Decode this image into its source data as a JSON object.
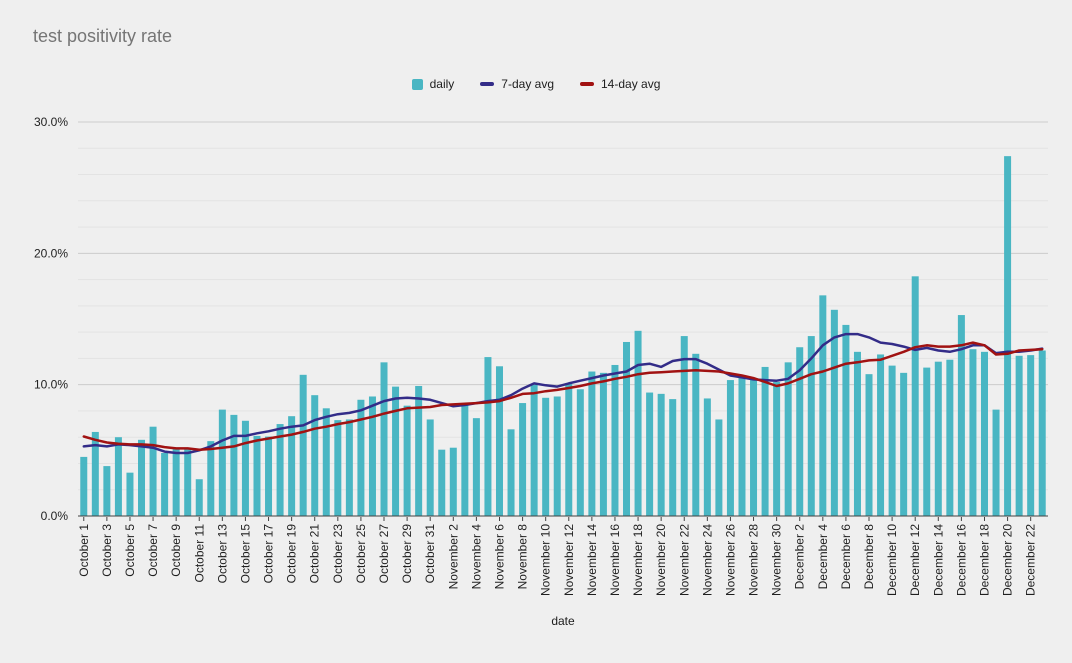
{
  "title": "test positivity rate",
  "xaxis_title": "date",
  "colors": {
    "background": "#efefef",
    "bar": "#49b6c3",
    "avg7": "#332c88",
    "avg14": "#a11212",
    "grid_major": "#cccccc",
    "grid_minor": "#e3e3e3",
    "axis": "#424242",
    "tick_text": "#1f1f1f",
    "title_text": "#757575"
  },
  "legend": [
    {
      "label": "daily",
      "swatch": "square",
      "color": "#49b6c3"
    },
    {
      "label": "7-day avg",
      "swatch": "line",
      "color": "#332c88"
    },
    {
      "label": "14-day avg",
      "swatch": "line",
      "color": "#a11212"
    }
  ],
  "chart_data": {
    "type": "bar",
    "title": "test positivity rate",
    "xlabel": "date",
    "ylabel": "",
    "ylim": [
      0,
      30
    ],
    "y_ticks": [
      {
        "value": 0,
        "label": "0.0%"
      },
      {
        "value": 10,
        "label": "10.0%"
      },
      {
        "value": 20,
        "label": "20.0%"
      },
      {
        "value": 30,
        "label": "30.0%"
      }
    ],
    "minor_grid_step": 2,
    "grid": true,
    "legend_position": "top-center",
    "x_label_every": 2,
    "categories": [
      "October 1",
      "October 2",
      "October 3",
      "October 4",
      "October 5",
      "October 6",
      "October 7",
      "October 8",
      "October 9",
      "October 10",
      "October 11",
      "October 12",
      "October 13",
      "October 14",
      "October 15",
      "October 16",
      "October 17",
      "October 18",
      "October 19",
      "October 20",
      "October 21",
      "October 22",
      "October 23",
      "October 24",
      "October 25",
      "October 26",
      "October 27",
      "October 28",
      "October 29",
      "October 30",
      "October 31",
      "November 1",
      "November 2",
      "November 3",
      "November 4",
      "November 5",
      "November 6",
      "November 7",
      "November 8",
      "November 9",
      "November 10",
      "November 11",
      "November 12",
      "November 13",
      "November 14",
      "November 15",
      "November 16",
      "November 17",
      "November 18",
      "November 19",
      "November 20",
      "November 21",
      "November 22",
      "November 23",
      "November 24",
      "November 25",
      "November 26",
      "November 27",
      "November 28",
      "November 29",
      "November 30",
      "December 1",
      "December 2",
      "December 3",
      "December 4",
      "December 5",
      "December 6",
      "December 7",
      "December 8",
      "December 9",
      "December 10",
      "December 11",
      "December 12",
      "December 13",
      "December 14",
      "December 15",
      "December 16",
      "December 17",
      "December 18",
      "December 19",
      "December 20",
      "December 21",
      "December 22",
      "December 23"
    ],
    "series": [
      {
        "name": "daily",
        "type": "bar",
        "color": "#49b6c3",
        "values": [
          4.5,
          6.4,
          3.8,
          6.0,
          3.3,
          5.8,
          6.8,
          4.8,
          5.1,
          5.1,
          2.8,
          5.7,
          8.1,
          7.7,
          7.25,
          6.1,
          6.05,
          7.0,
          7.6,
          10.75,
          9.2,
          8.2,
          7.3,
          7.35,
          8.85,
          9.1,
          11.7,
          9.85,
          8.4,
          9.9,
          7.35,
          5.05,
          5.2,
          8.55,
          7.45,
          12.1,
          11.4,
          6.6,
          8.6,
          10.0,
          9.0,
          9.1,
          10.05,
          9.65,
          11.0,
          10.9,
          11.5,
          13.25,
          14.1,
          9.4,
          9.3,
          8.9,
          13.7,
          12.35,
          8.95,
          7.35,
          10.35,
          10.6,
          10.45,
          11.35,
          10.2,
          11.7,
          12.85,
          13.7,
          16.8,
          15.7,
          14.55,
          12.5,
          10.8,
          12.3,
          11.45,
          10.9,
          18.25,
          11.3,
          11.75,
          11.9,
          15.3,
          12.7,
          12.5,
          8.1,
          27.4,
          12.2,
          12.25,
          12.6
        ]
      },
      {
        "name": "7-day avg",
        "type": "line",
        "color": "#332c88",
        "values": [
          5.3,
          5.4,
          5.3,
          5.45,
          5.4,
          5.3,
          5.2,
          4.9,
          4.8,
          4.8,
          5.0,
          5.3,
          5.75,
          6.1,
          6.1,
          6.3,
          6.45,
          6.65,
          6.8,
          6.9,
          7.3,
          7.55,
          7.75,
          7.85,
          8.05,
          8.4,
          8.75,
          8.95,
          9.0,
          8.95,
          8.85,
          8.6,
          8.35,
          8.45,
          8.6,
          8.75,
          8.85,
          9.2,
          9.7,
          10.1,
          9.95,
          9.85,
          10.1,
          10.3,
          10.5,
          10.7,
          10.85,
          11.0,
          11.5,
          11.6,
          11.35,
          11.8,
          11.95,
          11.95,
          11.6,
          11.15,
          10.7,
          10.55,
          10.4,
          10.35,
          10.3,
          10.45,
          11.1,
          12.0,
          13.0,
          13.6,
          13.85,
          13.85,
          13.6,
          13.2,
          13.1,
          12.9,
          12.65,
          12.8,
          12.6,
          12.5,
          12.7,
          13.0,
          13.0,
          12.4,
          12.5,
          12.5,
          12.6,
          12.75
        ]
      },
      {
        "name": "14-day avg",
        "type": "line",
        "color": "#a11212",
        "values": [
          6.05,
          5.8,
          5.6,
          5.5,
          5.45,
          5.45,
          5.4,
          5.25,
          5.15,
          5.15,
          5.05,
          5.1,
          5.2,
          5.3,
          5.55,
          5.75,
          5.9,
          6.05,
          6.2,
          6.4,
          6.65,
          6.8,
          7.0,
          7.15,
          7.35,
          7.55,
          7.8,
          8.0,
          8.2,
          8.25,
          8.3,
          8.45,
          8.5,
          8.55,
          8.6,
          8.65,
          8.75,
          9.0,
          9.3,
          9.35,
          9.5,
          9.6,
          9.75,
          9.9,
          10.1,
          10.25,
          10.45,
          10.6,
          10.8,
          10.9,
          10.95,
          11.0,
          11.05,
          11.1,
          11.05,
          11.0,
          10.85,
          10.7,
          10.5,
          10.2,
          9.9,
          10.1,
          10.45,
          10.8,
          11.0,
          11.3,
          11.6,
          11.7,
          11.85,
          11.9,
          12.2,
          12.5,
          12.85,
          13.0,
          12.9,
          12.9,
          13.0,
          13.2,
          13.0,
          12.3,
          12.35,
          12.6,
          12.65,
          12.7
        ]
      }
    ]
  }
}
